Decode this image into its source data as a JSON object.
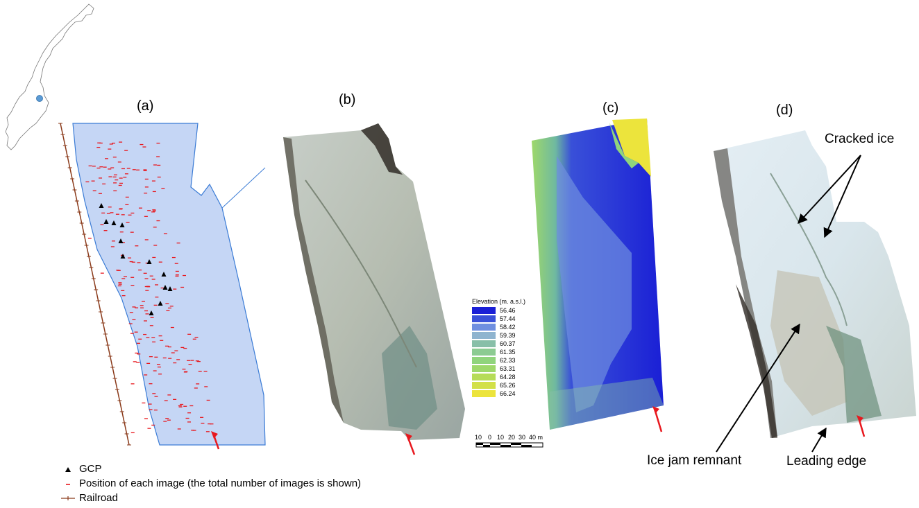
{
  "panels": {
    "a": {
      "label": "(a)"
    },
    "b": {
      "label": "(b)"
    },
    "c": {
      "label": "(c)"
    },
    "d": {
      "label": "(d)"
    }
  },
  "elevation_legend": {
    "title": "Elevation (m. a.s.l.)",
    "entries": [
      {
        "value": "56.46",
        "color": "#1a1fd6"
      },
      {
        "value": "57.44",
        "color": "#3950d8"
      },
      {
        "value": "58.42",
        "color": "#6f8fe0"
      },
      {
        "value": "59.39",
        "color": "#8fb4cf"
      },
      {
        "value": "60.37",
        "color": "#88bfa8"
      },
      {
        "value": "61.35",
        "color": "#8ccb92"
      },
      {
        "value": "62.33",
        "color": "#90d47c"
      },
      {
        "value": "63.31",
        "color": "#9ed86a"
      },
      {
        "value": "64.28",
        "color": "#b6dc58"
      },
      {
        "value": "65.26",
        "color": "#d2e048"
      },
      {
        "value": "66.24",
        "color": "#ece43c"
      }
    ]
  },
  "scale_bar": {
    "labels": [
      "10",
      "0",
      "10",
      "20",
      "30",
      "40 m"
    ]
  },
  "legend": {
    "gcp": "GCP",
    "image_position": "Position of each image (the total number of images is shown)",
    "railroad": "Railroad"
  },
  "annotations": {
    "cracked_ice": "Cracked ice",
    "ice_jam": "Ice jam remnant",
    "leading_edge": "Leading edge"
  },
  "colors": {
    "river": "#c5d6f5",
    "river_outline": "#3a7bd5",
    "railroad": "#8a3a1a",
    "image_marker": "#e8181e",
    "flow_arrow": "#e8181e",
    "location_dot": "#5b9bd5"
  }
}
